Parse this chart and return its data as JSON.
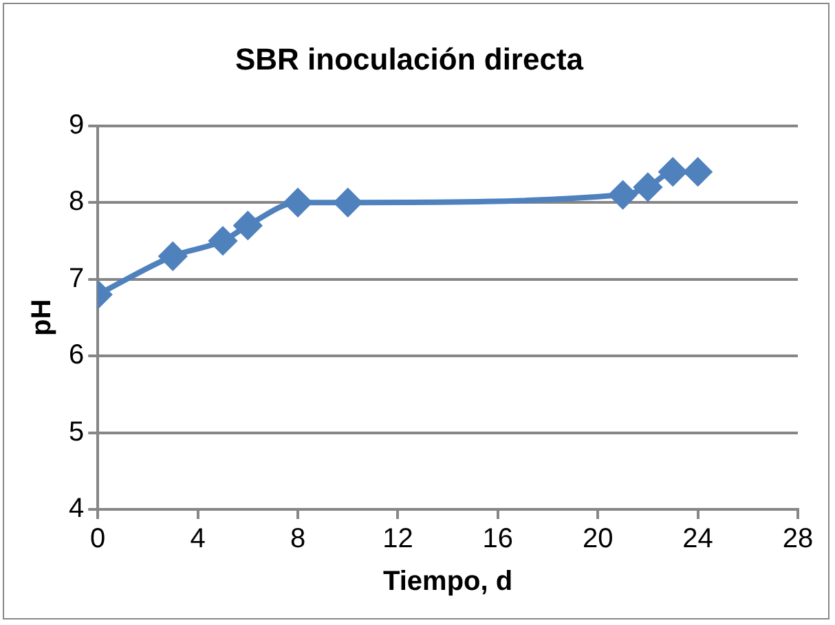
{
  "chart_data": {
    "type": "line",
    "title": "SBR inoculación directa",
    "xlabel": "Tiempo, d",
    "ylabel": "pH",
    "x": [
      0,
      3,
      5,
      6,
      8,
      10,
      21,
      22,
      23,
      24
    ],
    "series": [
      {
        "color": "#4f81bd",
        "values": [
          6.8,
          7.3,
          7.5,
          7.7,
          8.0,
          8.0,
          8.1,
          8.2,
          8.4,
          8.4
        ]
      }
    ],
    "xlim": [
      0,
      28
    ],
    "xticks": [
      0,
      4,
      8,
      12,
      16,
      20,
      24,
      28
    ],
    "ylim": [
      4,
      9
    ],
    "yticks": [
      4,
      5,
      6,
      7,
      8,
      9
    ],
    "grid": "y",
    "legend": false,
    "marker": "diamond",
    "line_style": "solid"
  }
}
